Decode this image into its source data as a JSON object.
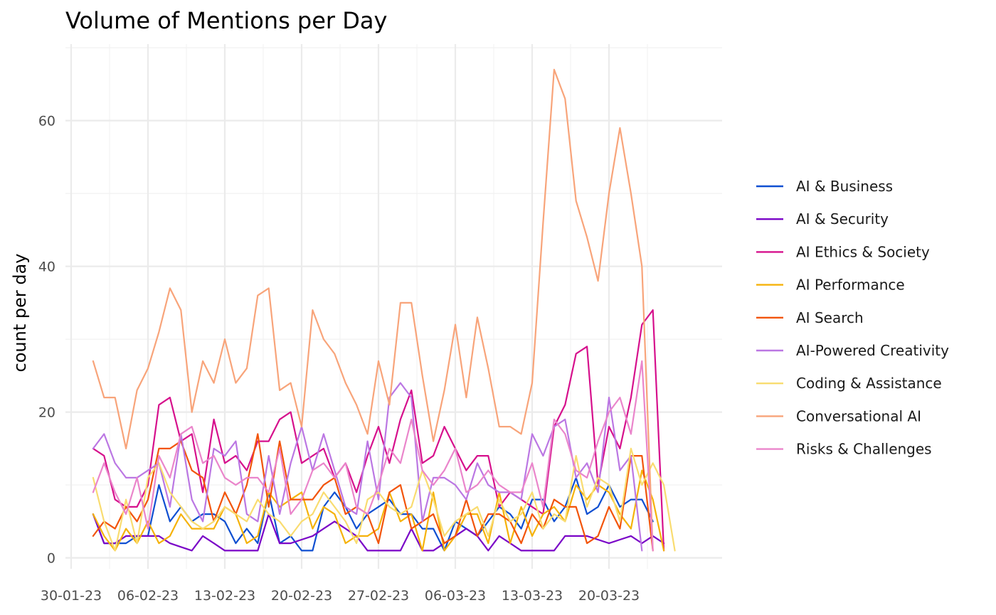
{
  "chart_data": {
    "type": "line",
    "title": "Volume of Mentions per Day",
    "xlabel": "",
    "ylabel": "count per day",
    "x_start": "2023-02-01",
    "x_ticks": [
      "30-01-23",
      "06-02-23",
      "13-02-23",
      "20-02-23",
      "27-02-23",
      "06-03-23",
      "13-03-23",
      "20-03-23"
    ],
    "y_ticks": [
      "0",
      "20",
      "40",
      "60"
    ],
    "ylim": [
      -1.5,
      70.5
    ],
    "grid": true,
    "legend_position": "right",
    "series": [
      {
        "name": "AI & Business",
        "color": "#0f4fd1",
        "values": [
          6,
          2,
          2,
          2,
          3,
          3,
          10,
          5,
          7,
          5,
          6,
          6,
          5,
          2,
          4,
          2,
          9,
          2,
          3,
          1,
          1,
          7,
          9,
          7,
          4,
          6,
          7,
          8,
          6,
          6,
          4,
          4,
          1,
          5,
          4,
          3,
          5,
          7,
          6,
          4,
          8,
          8,
          5,
          7,
          11,
          6,
          7,
          10,
          7,
          8,
          8,
          5
        ]
      },
      {
        "name": "AI & Security",
        "color": "#7a05c7",
        "values": [
          6,
          2,
          2,
          3,
          3,
          3,
          3,
          2,
          1.5,
          1,
          3,
          2,
          1,
          1,
          1,
          1,
          6,
          2,
          2,
          2.5,
          3,
          4,
          5,
          4,
          3,
          1,
          1,
          1,
          1,
          4,
          1,
          1,
          2,
          3,
          4,
          3,
          1,
          3,
          2,
          1,
          1,
          1,
          1,
          3,
          3,
          3,
          2.5,
          2,
          2.5,
          3,
          2,
          3,
          2
        ]
      },
      {
        "name": "AI Ethics & Society",
        "color": "#d6108c",
        "values": [
          15,
          14,
          8,
          7,
          7,
          10,
          21,
          22,
          16,
          17,
          9,
          19,
          13,
          14,
          12,
          16,
          16,
          19,
          20,
          13,
          14,
          15,
          11,
          13,
          9,
          14,
          18,
          13,
          19,
          23,
          13,
          14,
          18,
          15,
          12,
          14,
          14,
          7,
          9,
          8,
          7,
          6,
          18,
          21,
          28,
          29,
          10,
          18,
          15,
          22,
          32,
          34,
          1
        ]
      },
      {
        "name": "AI Performance",
        "color": "#f5b20a",
        "values": [
          6,
          3,
          1,
          4,
          2,
          5,
          2,
          3,
          6,
          4,
          4,
          4,
          7,
          6,
          2,
          3,
          9,
          7,
          8,
          9,
          4,
          7,
          6,
          2,
          3,
          3,
          4,
          9,
          5,
          6,
          1,
          9,
          1,
          3,
          6,
          6,
          2,
          9,
          2,
          7,
          3,
          6,
          7,
          5,
          10,
          8,
          10,
          9,
          6,
          4,
          12,
          8,
          1
        ]
      },
      {
        "name": "AI Search",
        "color": "#f2540a",
        "values": [
          3,
          5,
          4,
          7,
          5,
          8,
          15,
          15,
          16,
          12,
          11,
          5,
          9,
          6,
          10,
          17,
          7,
          16,
          8,
          8,
          8,
          10,
          11,
          6,
          7,
          6,
          2,
          9,
          10,
          4,
          5,
          6,
          2,
          3,
          8,
          3,
          6,
          6,
          5,
          2,
          6,
          4,
          8,
          7,
          7,
          2,
          3,
          7,
          4,
          14,
          14,
          1
        ]
      },
      {
        "name": "AI-Powered Creativity",
        "color": "#bb77e3",
        "values": [
          15,
          17,
          13,
          11,
          11,
          12,
          13,
          7,
          17,
          8,
          5,
          15,
          14,
          16,
          6,
          5,
          14,
          6,
          13,
          18,
          12,
          17,
          12,
          7,
          6,
          16,
          8,
          22,
          24,
          22,
          5,
          11,
          11,
          10,
          8,
          13,
          10,
          9,
          9,
          8,
          17,
          14,
          18,
          19,
          11,
          13,
          9,
          22,
          12,
          14,
          1
        ]
      },
      {
        "name": "Coding & Assistance",
        "color": "#f9dc70",
        "values": [
          11,
          5,
          1,
          8,
          2,
          11,
          13,
          9,
          7,
          5,
          4,
          5,
          7,
          6,
          5,
          8,
          6,
          5,
          3,
          5,
          6,
          9,
          7,
          5,
          2,
          8,
          9,
          7,
          6,
          7,
          12,
          8,
          3,
          5,
          6,
          7,
          3,
          8,
          5,
          6,
          9,
          4,
          6,
          5,
          14,
          7,
          11,
          10,
          5,
          15,
          10,
          13,
          10,
          1
        ]
      },
      {
        "name": "Conversational AI",
        "color": "#f8a47a",
        "values": [
          27,
          22,
          22,
          15,
          23,
          26,
          31,
          37,
          34,
          20,
          27,
          24,
          30,
          24,
          26,
          36,
          37,
          23,
          24,
          18,
          34,
          30,
          28,
          24,
          21,
          17,
          27,
          21,
          35,
          35,
          25,
          16,
          23,
          32,
          22,
          33,
          26,
          18,
          18,
          17,
          24,
          46,
          67,
          63,
          49,
          44,
          38,
          50,
          59,
          50,
          40,
          1
        ]
      },
      {
        "name": "Risks & Challenges",
        "color": "#ea85cb",
        "values": [
          9,
          13,
          9,
          6,
          11,
          4,
          14,
          11,
          17,
          18,
          13,
          14,
          11,
          10,
          11,
          11,
          9,
          15,
          6,
          8,
          12,
          13,
          11,
          13,
          7,
          6,
          10,
          15,
          13,
          19,
          12,
          10,
          12,
          15,
          9,
          10,
          12,
          10,
          9,
          9,
          13,
          7,
          19,
          17,
          12,
          11,
          16,
          20,
          22,
          17,
          27,
          1
        ]
      }
    ]
  }
}
